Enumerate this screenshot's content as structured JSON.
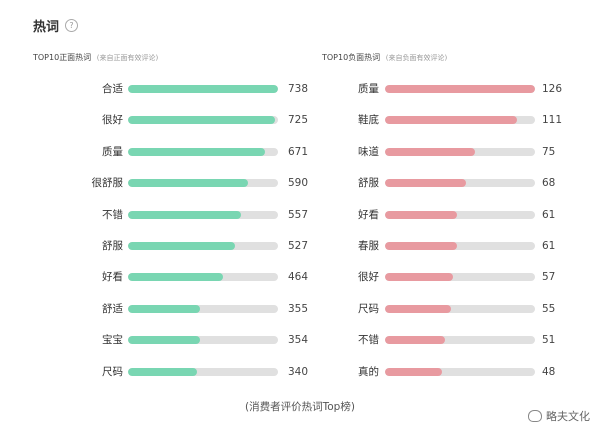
{
  "header": {
    "title": "热词",
    "info_icon": "help-circle-icon"
  },
  "positive": {
    "title": "TOP10正面热词",
    "subtitle": "(来自正面有效评论)",
    "color": "#79d6b2",
    "items": [
      {
        "label": "合适",
        "value": "738",
        "fraction": 1.0
      },
      {
        "label": "很好",
        "value": "725",
        "fraction": 0.98
      },
      {
        "label": "质量",
        "value": "671",
        "fraction": 0.91
      },
      {
        "label": "很舒服",
        "value": "590",
        "fraction": 0.8
      },
      {
        "label": "不错",
        "value": "557",
        "fraction": 0.75
      },
      {
        "label": "舒服",
        "value": "527",
        "fraction": 0.71
      },
      {
        "label": "好看",
        "value": "464",
        "fraction": 0.63
      },
      {
        "label": "舒适",
        "value": "355",
        "fraction": 0.48
      },
      {
        "label": "宝宝",
        "value": "354",
        "fraction": 0.48
      },
      {
        "label": "尺码",
        "value": "340",
        "fraction": 0.46
      }
    ]
  },
  "negative": {
    "title": "TOP10负面热词",
    "subtitle": "(来自负面有效评论)",
    "color": "#e89aa0",
    "items": [
      {
        "label": "质量",
        "value": "126",
        "fraction": 1.0
      },
      {
        "label": "鞋底",
        "value": "111",
        "fraction": 0.88
      },
      {
        "label": "味道",
        "value": "75",
        "fraction": 0.6
      },
      {
        "label": "舒服",
        "value": "68",
        "fraction": 0.54
      },
      {
        "label": "好看",
        "value": "61",
        "fraction": 0.48
      },
      {
        "label": "春服",
        "value": "61",
        "fraction": 0.48
      },
      {
        "label": "很好",
        "value": "57",
        "fraction": 0.45
      },
      {
        "label": "尺码",
        "value": "55",
        "fraction": 0.44
      },
      {
        "label": "不错",
        "value": "51",
        "fraction": 0.4
      },
      {
        "label": "真的",
        "value": "48",
        "fraction": 0.38
      }
    ]
  },
  "caption": "(消费者评价热词Top榜)",
  "watermark": {
    "text": "略夫文化",
    "icon": "weibo-icon"
  }
}
